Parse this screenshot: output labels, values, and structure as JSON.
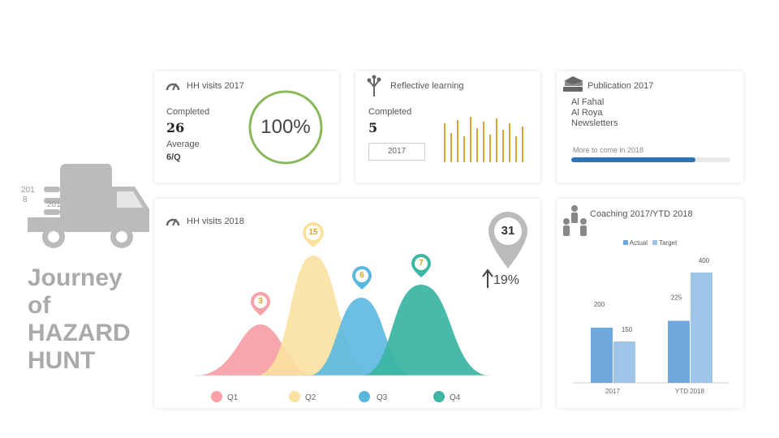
{
  "truck": {
    "year_a": "201",
    "year_b": "8",
    "year_c": "201"
  },
  "journey": {
    "line1": "Journey",
    "line2": "of",
    "line3": "HAZARD",
    "line4": "HUNT"
  },
  "hh2017": {
    "title": "HH visits 2017",
    "completed_label": "Completed",
    "completed_value": "26",
    "average_label": "Average",
    "average_value": "6/Q",
    "percent": "100%",
    "percent_value": 100
  },
  "reflective": {
    "title": "Reflective learning",
    "completed_label": "Completed",
    "completed_value": "5",
    "year_button": "2017"
  },
  "publication": {
    "title": "Publication 2017",
    "line1": "Al Fahal",
    "line2": "Al Roya",
    "line3": "Newsletters",
    "more": "More to come in 2018",
    "progress": 0.78
  },
  "hh2018": {
    "title": "HH visits 2018",
    "total": "31",
    "growth": "19%",
    "pins": [
      "15",
      "6",
      "3",
      "7"
    ],
    "quarters": [
      "Q1",
      "Q2",
      "Q3",
      "Q4"
    ]
  },
  "coaching": {
    "title": "Coaching 2017/YTD 2018",
    "legend_actual": "Actual",
    "legend_target": "Target"
  },
  "colors": {
    "q1": "#f7a1a9",
    "q2": "#f9e1a0",
    "q3": "#5ab8e0",
    "q4": "#3db6a4",
    "ring": "#8ab85a",
    "gold": "#d4a437",
    "bar_actual": "#6fa8dc",
    "bar_target": "#9fc5e8",
    "progress": "#2e75b6"
  },
  "chart_data": {
    "type": "bar",
    "categories": [
      "2017",
      "YTD 2018"
    ],
    "series": [
      {
        "name": "Actual",
        "values": [
          200,
          225
        ]
      },
      {
        "name": "Target",
        "values": [
          150,
          400
        ]
      }
    ],
    "title": "Coaching 2017/YTD 2018",
    "ylim": [
      0,
      450
    ]
  }
}
